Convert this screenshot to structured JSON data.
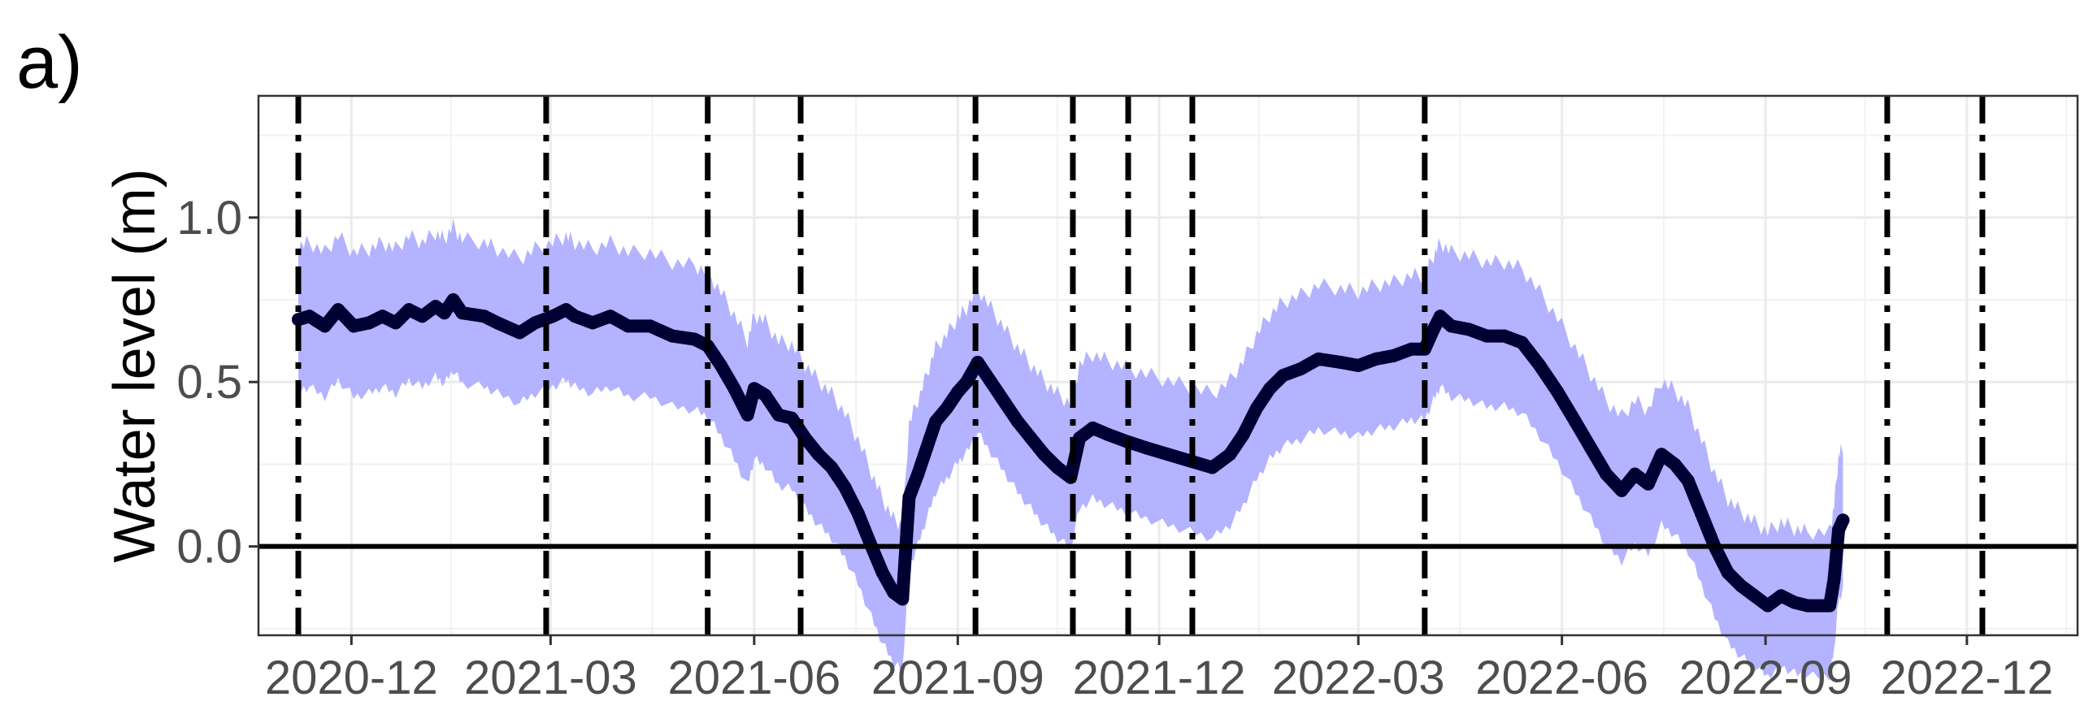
{
  "panel_label": "a)",
  "chart_data": {
    "type": "line",
    "title": "",
    "xlabel": "",
    "ylabel": "Water level (m)",
    "xlim": [
      "2020-10-20",
      "2023-01-20"
    ],
    "ylim": [
      -0.27,
      1.37
    ],
    "x_ticks": [
      {
        "value": "2020-12-01",
        "label": "2020-12"
      },
      {
        "value": "2021-03-01",
        "label": "2021-03"
      },
      {
        "value": "2021-06-01",
        "label": "2021-06"
      },
      {
        "value": "2021-09-01",
        "label": "2021-09"
      },
      {
        "value": "2021-12-01",
        "label": "2021-12"
      },
      {
        "value": "2022-03-01",
        "label": "2022-03"
      },
      {
        "value": "2022-06-01",
        "label": "2022-06"
      },
      {
        "value": "2022-09-01",
        "label": "2022-09"
      },
      {
        "value": "2022-12-01",
        "label": "2022-12"
      }
    ],
    "y_ticks": [
      {
        "value": 0.0,
        "label": "0.0"
      },
      {
        "value": 0.5,
        "label": "0.5"
      },
      {
        "value": 1.0,
        "label": "1.0"
      }
    ],
    "grid": true,
    "legend": "none",
    "horizontal_reference_line": 0,
    "vertical_event_lines": [
      "2020-11-07",
      "2021-02-27",
      "2021-05-11",
      "2021-06-22",
      "2021-09-09",
      "2021-10-23",
      "2021-11-17",
      "2021-12-16",
      "2022-03-31",
      "2022-10-26",
      "2022-12-08"
    ],
    "series": [
      {
        "type": "line-with-band",
        "color": "#000033",
        "band_color": "#b3b3ff",
        "band_halfwidth": 0.2,
        "points": [
          [
            "2020-11-07",
            0.69
          ],
          [
            "2020-11-12",
            0.7
          ],
          [
            "2020-11-19",
            0.67
          ],
          [
            "2020-11-25",
            0.72
          ],
          [
            "2020-12-02",
            0.67
          ],
          [
            "2020-12-09",
            0.68
          ],
          [
            "2020-12-15",
            0.7
          ],
          [
            "2020-12-21",
            0.68
          ],
          [
            "2020-12-27",
            0.72
          ],
          [
            "2021-01-02",
            0.7
          ],
          [
            "2021-01-08",
            0.73
          ],
          [
            "2021-01-12",
            0.71
          ],
          [
            "2021-01-16",
            0.75
          ],
          [
            "2021-01-20",
            0.71
          ],
          [
            "2021-01-30",
            0.7
          ],
          [
            "2021-02-05",
            0.68
          ],
          [
            "2021-02-15",
            0.65
          ],
          [
            "2021-02-22",
            0.68
          ],
          [
            "2021-03-02",
            0.7
          ],
          [
            "2021-03-08",
            0.72
          ],
          [
            "2021-03-12",
            0.7
          ],
          [
            "2021-03-20",
            0.68
          ],
          [
            "2021-03-28",
            0.7
          ],
          [
            "2021-04-05",
            0.67
          ],
          [
            "2021-04-15",
            0.67
          ],
          [
            "2021-04-25",
            0.64
          ],
          [
            "2021-05-05",
            0.63
          ],
          [
            "2021-05-11",
            0.61
          ],
          [
            "2021-05-17",
            0.55
          ],
          [
            "2021-05-23",
            0.48
          ],
          [
            "2021-05-29",
            0.4
          ],
          [
            "2021-06-01",
            0.48
          ],
          [
            "2021-06-06",
            0.46
          ],
          [
            "2021-06-12",
            0.4
          ],
          [
            "2021-06-18",
            0.39
          ],
          [
            "2021-06-24",
            0.33
          ],
          [
            "2021-06-30",
            0.28
          ],
          [
            "2021-07-06",
            0.24
          ],
          [
            "2021-07-12",
            0.18
          ],
          [
            "2021-07-18",
            0.1
          ],
          [
            "2021-07-24",
            0.0
          ],
          [
            "2021-07-29",
            -0.08
          ],
          [
            "2021-08-03",
            -0.14
          ],
          [
            "2021-08-07",
            -0.16
          ],
          [
            "2021-08-10",
            0.15
          ],
          [
            "2021-08-14",
            0.22
          ],
          [
            "2021-08-18",
            0.3
          ],
          [
            "2021-08-22",
            0.38
          ],
          [
            "2021-08-27",
            0.42
          ],
          [
            "2021-09-01",
            0.47
          ],
          [
            "2021-09-05",
            0.5
          ],
          [
            "2021-09-10",
            0.56
          ],
          [
            "2021-09-16",
            0.5
          ],
          [
            "2021-09-22",
            0.44
          ],
          [
            "2021-09-28",
            0.38
          ],
          [
            "2021-10-04",
            0.33
          ],
          [
            "2021-10-10",
            0.28
          ],
          [
            "2021-10-16",
            0.24
          ],
          [
            "2021-10-22",
            0.21
          ],
          [
            "2021-10-26",
            0.33
          ],
          [
            "2021-11-01",
            0.36
          ],
          [
            "2021-11-08",
            0.34
          ],
          [
            "2021-11-16",
            0.32
          ],
          [
            "2021-11-25",
            0.3
          ],
          [
            "2021-12-05",
            0.28
          ],
          [
            "2021-12-15",
            0.26
          ],
          [
            "2021-12-25",
            0.24
          ],
          [
            "2022-01-02",
            0.28
          ],
          [
            "2022-01-08",
            0.34
          ],
          [
            "2022-01-14",
            0.42
          ],
          [
            "2022-01-20",
            0.48
          ],
          [
            "2022-01-26",
            0.52
          ],
          [
            "2022-02-03",
            0.54
          ],
          [
            "2022-02-11",
            0.57
          ],
          [
            "2022-02-21",
            0.56
          ],
          [
            "2022-03-01",
            0.55
          ],
          [
            "2022-03-09",
            0.57
          ],
          [
            "2022-03-17",
            0.58
          ],
          [
            "2022-03-25",
            0.6
          ],
          [
            "2022-03-31",
            0.6
          ],
          [
            "2022-04-04",
            0.66
          ],
          [
            "2022-04-07",
            0.7
          ],
          [
            "2022-04-12",
            0.67
          ],
          [
            "2022-04-20",
            0.66
          ],
          [
            "2022-04-28",
            0.64
          ],
          [
            "2022-05-06",
            0.64
          ],
          [
            "2022-05-14",
            0.62
          ],
          [
            "2022-05-22",
            0.55
          ],
          [
            "2022-05-30",
            0.47
          ],
          [
            "2022-06-07",
            0.38
          ],
          [
            "2022-06-14",
            0.3
          ],
          [
            "2022-06-21",
            0.22
          ],
          [
            "2022-06-28",
            0.17
          ],
          [
            "2022-07-04",
            0.22
          ],
          [
            "2022-07-10",
            0.19
          ],
          [
            "2022-07-16",
            0.28
          ],
          [
            "2022-07-22",
            0.25
          ],
          [
            "2022-07-28",
            0.2
          ],
          [
            "2022-08-03",
            0.1
          ],
          [
            "2022-08-09",
            0.0
          ],
          [
            "2022-08-15",
            -0.08
          ],
          [
            "2022-08-21",
            -0.12
          ],
          [
            "2022-08-27",
            -0.15
          ],
          [
            "2022-09-02",
            -0.18
          ],
          [
            "2022-09-08",
            -0.15
          ],
          [
            "2022-09-14",
            -0.17
          ],
          [
            "2022-09-20",
            -0.18
          ],
          [
            "2022-09-30",
            -0.18
          ],
          [
            "2022-10-02",
            -0.1
          ],
          [
            "2022-10-04",
            0.05
          ],
          [
            "2022-10-06",
            0.08
          ]
        ]
      }
    ]
  }
}
